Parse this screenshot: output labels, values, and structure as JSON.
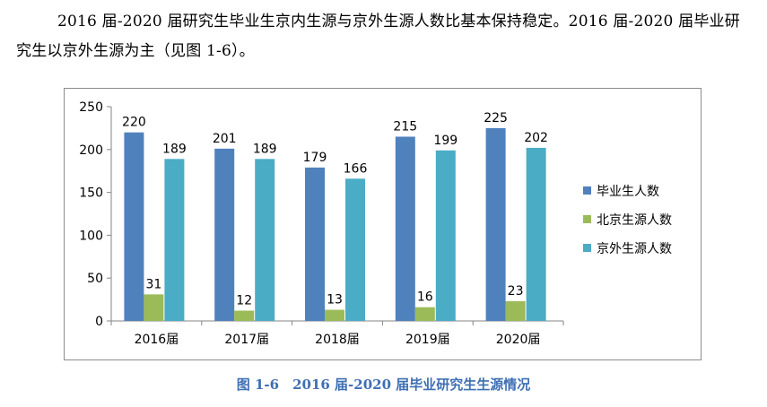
{
  "document": {
    "intro_text": "2016 届-2020 届研究生毕业生京内生源与京外生源人数比基本保持稳定。2016 届-2020 届毕业研究生以京外生源为主（见图 1-6）。",
    "caption": "图 1-6　2016 届-2020 届毕业研究生生源情况"
  },
  "chart_data": {
    "type": "bar",
    "title": "",
    "xlabel": "",
    "ylabel": "",
    "categories": [
      "2016届",
      "2017届",
      "2018届",
      "2019届",
      "2020届"
    ],
    "series": [
      {
        "name": "毕业生人数",
        "values": [
          220,
          201,
          179,
          215,
          225
        ],
        "color": "#4f81bd"
      },
      {
        "name": "北京生源人数",
        "values": [
          31,
          12,
          13,
          16,
          23
        ],
        "color": "#9bbb59"
      },
      {
        "name": "京外生源人数",
        "values": [
          189,
          189,
          166,
          199,
          202
        ],
        "color": "#4bacc6"
      }
    ],
    "ylim": [
      0,
      250
    ],
    "yticks": [
      0,
      50,
      100,
      150,
      200,
      250
    ],
    "grid": false,
    "legend_position": "right"
  }
}
